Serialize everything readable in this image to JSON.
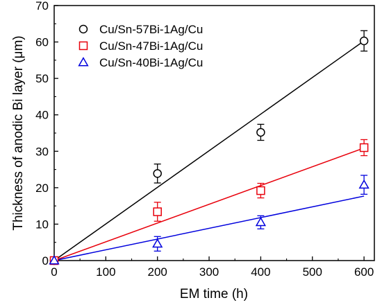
{
  "chart_data": {
    "type": "scatter",
    "title": "",
    "xlabel": "EM time (h)",
    "ylabel": "Thickness of anodic Bi layer (μm)",
    "xlim": [
      0,
      620
    ],
    "ylim": [
      0,
      70
    ],
    "xticks": [
      0,
      100,
      200,
      300,
      400,
      500,
      600
    ],
    "yticks": [
      0,
      10,
      20,
      30,
      40,
      50,
      60,
      70
    ],
    "grid": false,
    "legend_position": "top-left",
    "series": [
      {
        "name": "Cu/Sn-57Bi-1Ag/Cu",
        "marker": "circle",
        "color": "#000000",
        "x": [
          0,
          200,
          400,
          600
        ],
        "y": [
          0,
          23.9,
          35.2,
          60.3
        ],
        "err": [
          0,
          2.6,
          2.2,
          2.8
        ],
        "fit": {
          "slope": 0.1005,
          "intercept": 0
        }
      },
      {
        "name": "Cu/Sn-47Bi-1Ag/Cu",
        "marker": "square",
        "color": "#e8000b",
        "x": [
          0,
          200,
          400,
          600
        ],
        "y": [
          0,
          13.4,
          19.2,
          31.0
        ],
        "err": [
          0,
          2.6,
          2.0,
          2.2
        ],
        "fit": {
          "slope": 0.0515,
          "intercept": 0
        }
      },
      {
        "name": "Cu/Sn-40Bi-1Ag/Cu",
        "marker": "triangle",
        "color": "#0000dd",
        "x": [
          0,
          200,
          400,
          600
        ],
        "y": [
          0,
          4.6,
          10.5,
          20.8
        ],
        "err": [
          0,
          2.0,
          1.8,
          2.6
        ],
        "fit": {
          "slope": 0.0295,
          "intercept": 0
        }
      }
    ]
  }
}
